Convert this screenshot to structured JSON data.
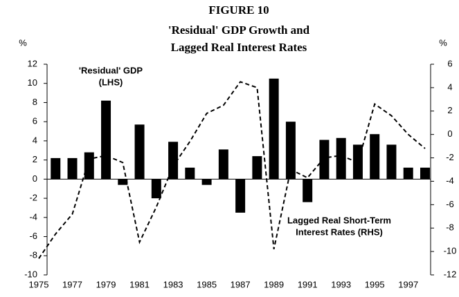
{
  "chart_data": {
    "type": "bar_line",
    "title": [
      "FIGURE 10",
      "'Residual' GDP Growth and",
      "Lagged Real Interest Rates"
    ],
    "ylabel": "%",
    "y2label": "%",
    "annotations": [
      "'Residual'  GDP",
      "(LHS)",
      "Lagged Real Short-Term",
      "Interest  Rates (RHS)"
    ],
    "categories": [
      "1975",
      null,
      "1977",
      null,
      "1979",
      null,
      "1981",
      null,
      "1983",
      null,
      "1985",
      null,
      "1987",
      null,
      "1989",
      null,
      "1991",
      null,
      "1993",
      null,
      "1995",
      null,
      "1997",
      null
    ],
    "series": [
      {
        "type": "bar",
        "color": "#000000",
        "values": [
          null,
          2.2,
          2.2,
          2.8,
          8.2,
          -0.6,
          5.7,
          -2.0,
          3.9,
          1.2,
          -0.6,
          3.1,
          -3.5,
          2.4,
          10.5,
          6.0,
          -2.4,
          4.1,
          4.3,
          3.6,
          4.7,
          3.6,
          1.2,
          1.2
        ]
      },
      {
        "type": "line",
        "axis": "y2",
        "color": "#000000",
        "dashed": true,
        "values": [
          -10.6,
          -8.5,
          -6.8,
          -2.1,
          -1.8,
          -2.4,
          -9.2,
          -6.2,
          -2.7,
          -0.6,
          1.8,
          2.5,
          4.5,
          4.0,
          -9.8,
          -3.0,
          -3.7,
          -2.0,
          -1.8,
          -2.4,
          2.6,
          1.6,
          0.0,
          -1.2
        ]
      }
    ],
    "ylim": [
      -10,
      12
    ],
    "yticks": [
      -10,
      -8,
      -6,
      -4,
      -2,
      0,
      2,
      4,
      6,
      8,
      10,
      12
    ],
    "y2lim": [
      -12,
      6
    ],
    "y2ticks": [
      -12,
      -10,
      -8,
      -6,
      -4,
      -2,
      0,
      2,
      4,
      6
    ]
  }
}
